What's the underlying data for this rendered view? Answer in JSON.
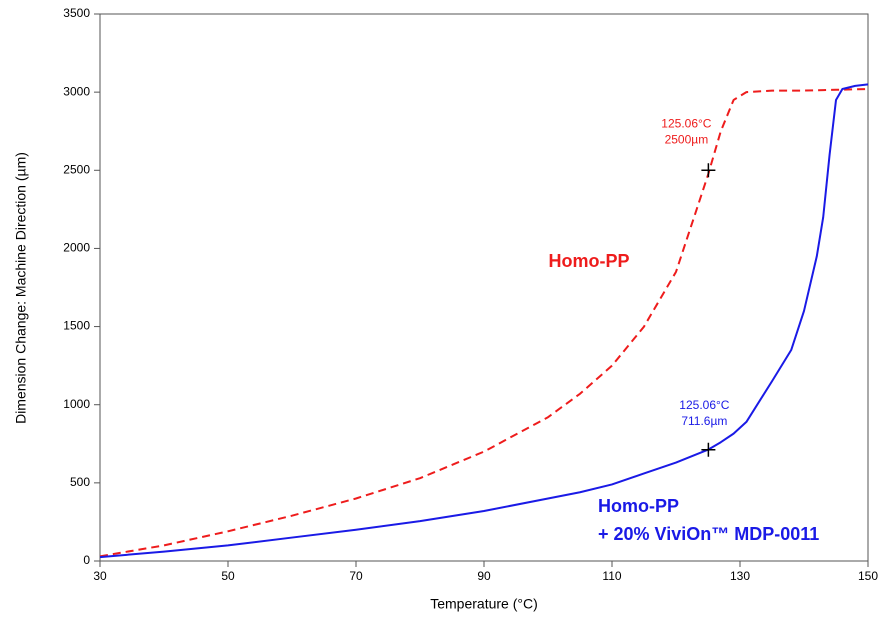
{
  "chart_data": {
    "type": "line",
    "x_label": "Temperature (°C)",
    "y_label": "Dimension Change: Machine Direction (µm)",
    "xlim": [
      30,
      150
    ],
    "ylim": [
      0,
      3500
    ],
    "xticks": [
      30,
      50,
      70,
      90,
      110,
      130,
      150
    ],
    "yticks": [
      0,
      500,
      1000,
      1500,
      2000,
      2500,
      3000,
      3500
    ],
    "x": [
      30,
      40,
      50,
      60,
      70,
      80,
      90,
      100,
      105,
      110,
      115,
      120,
      125,
      127,
      129,
      131,
      135,
      138,
      140,
      142,
      143,
      144,
      145,
      146,
      148,
      150
    ],
    "series": [
      {
        "name": "Homo-PP",
        "color": "#ee1c1c",
        "dashed": true,
        "values": [
          30,
          100,
          190,
          290,
          400,
          530,
          700,
          920,
          1070,
          1250,
          1500,
          1850,
          2470,
          2750,
          2950,
          3000,
          3010,
          3010,
          3010,
          3012,
          3013,
          3014,
          3015,
          3016,
          3018,
          3020
        ]
      },
      {
        "name": "Homo-PP",
        "name_line2": "+ 20% ViviOn™ MDP-0011",
        "color": "#1a1ae6",
        "dashed": false,
        "values": [
          25,
          60,
          100,
          150,
          200,
          255,
          320,
          400,
          440,
          490,
          560,
          630,
          712,
          760,
          815,
          890,
          1150,
          1350,
          1600,
          1950,
          2200,
          2600,
          2950,
          3020,
          3040,
          3050
        ]
      }
    ],
    "annotations": [
      {
        "x": 125.06,
        "y": 2500,
        "line1": "125.06°C",
        "line2": "2500µm",
        "color": "#ee1c1c"
      },
      {
        "x": 125.06,
        "y": 711.6,
        "line1": "125.06°C",
        "line2": "711.6µm",
        "color": "#1a1ae6"
      }
    ]
  }
}
